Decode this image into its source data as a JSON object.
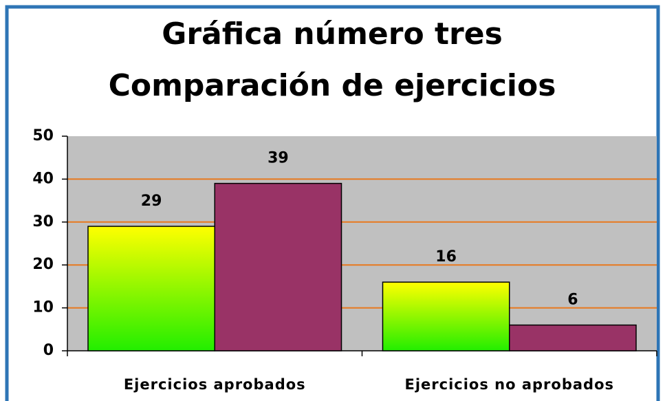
{
  "chart_data": {
    "type": "bar",
    "title": "Gráfica número tres",
    "subtitle": "Comparación de ejercicios",
    "categories": [
      "Ejercicios aprobados",
      "Ejercicios no aprobados"
    ],
    "series": [
      {
        "color": "#ffff00",
        "gradient_to": "#22ee00",
        "values": [
          29,
          16
        ]
      },
      {
        "color": "#993366",
        "values": [
          39,
          6
        ]
      }
    ],
    "ylim": [
      0,
      50
    ],
    "yticks": [
      0,
      10,
      20,
      30,
      40,
      50
    ],
    "grid": true,
    "grid_color": "#e8781e",
    "plot_background": "#c0c0c0"
  }
}
